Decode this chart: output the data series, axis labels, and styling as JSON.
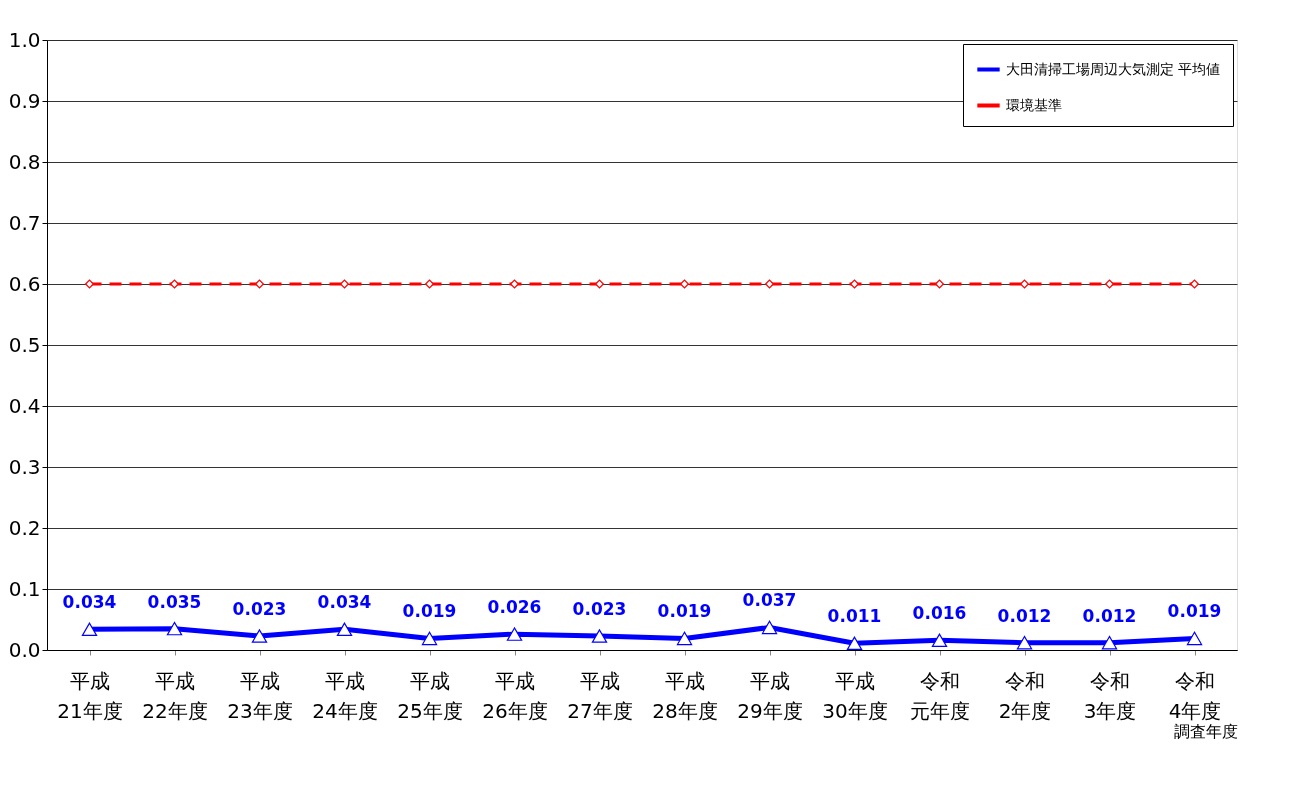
{
  "chart_data": {
    "type": "line",
    "xlabel": "調査年度",
    "categories": [
      "平成21年度",
      "平成22年度",
      "平成23年度",
      "平成24年度",
      "平成25年度",
      "平成26年度",
      "平成27年度",
      "平成28年度",
      "平成29年度",
      "平成30年度",
      "令和元年度",
      "令和2年度",
      "令和3年度",
      "令和4年度"
    ],
    "series": [
      {
        "name": "大田清掃工場周辺大気測定 平均値",
        "color": "#0000ff",
        "marker": "triangle",
        "line_style": "solid",
        "values": [
          0.034,
          0.035,
          0.023,
          0.034,
          0.019,
          0.026,
          0.023,
          0.019,
          0.037,
          0.011,
          0.016,
          0.012,
          0.012,
          0.019
        ],
        "value_labels": [
          "0.034",
          "0.035",
          "0.023",
          "0.034",
          "0.019",
          "0.026",
          "0.023",
          "0.019",
          "0.037",
          "0.011",
          "0.016",
          "0.012",
          "0.012",
          "0.019"
        ]
      },
      {
        "name": "環境基準",
        "color": "#ff0000",
        "marker": "diamond",
        "line_style": "dashed",
        "values": [
          0.6,
          0.6,
          0.6,
          0.6,
          0.6,
          0.6,
          0.6,
          0.6,
          0.6,
          0.6,
          0.6,
          0.6,
          0.6,
          0.6
        ]
      }
    ],
    "ylim": [
      0,
      1
    ],
    "yticks": [
      {
        "value": 0,
        "label": "0.0"
      },
      {
        "value": 0.1,
        "label": "0.1"
      },
      {
        "value": 0.2,
        "label": "0.2"
      },
      {
        "value": 0.3,
        "label": "0.3"
      },
      {
        "value": 0.4,
        "label": "0.4"
      },
      {
        "value": 0.5,
        "label": "0.5"
      },
      {
        "value": 0.6,
        "label": "0.6"
      },
      {
        "value": 0.7,
        "label": "0.7"
      },
      {
        "value": 0.8,
        "label": "0.8"
      },
      {
        "value": 0.9,
        "label": "0.9"
      },
      {
        "value": 1,
        "label": "1.0"
      }
    ],
    "grid": "y",
    "legend": "top right"
  }
}
